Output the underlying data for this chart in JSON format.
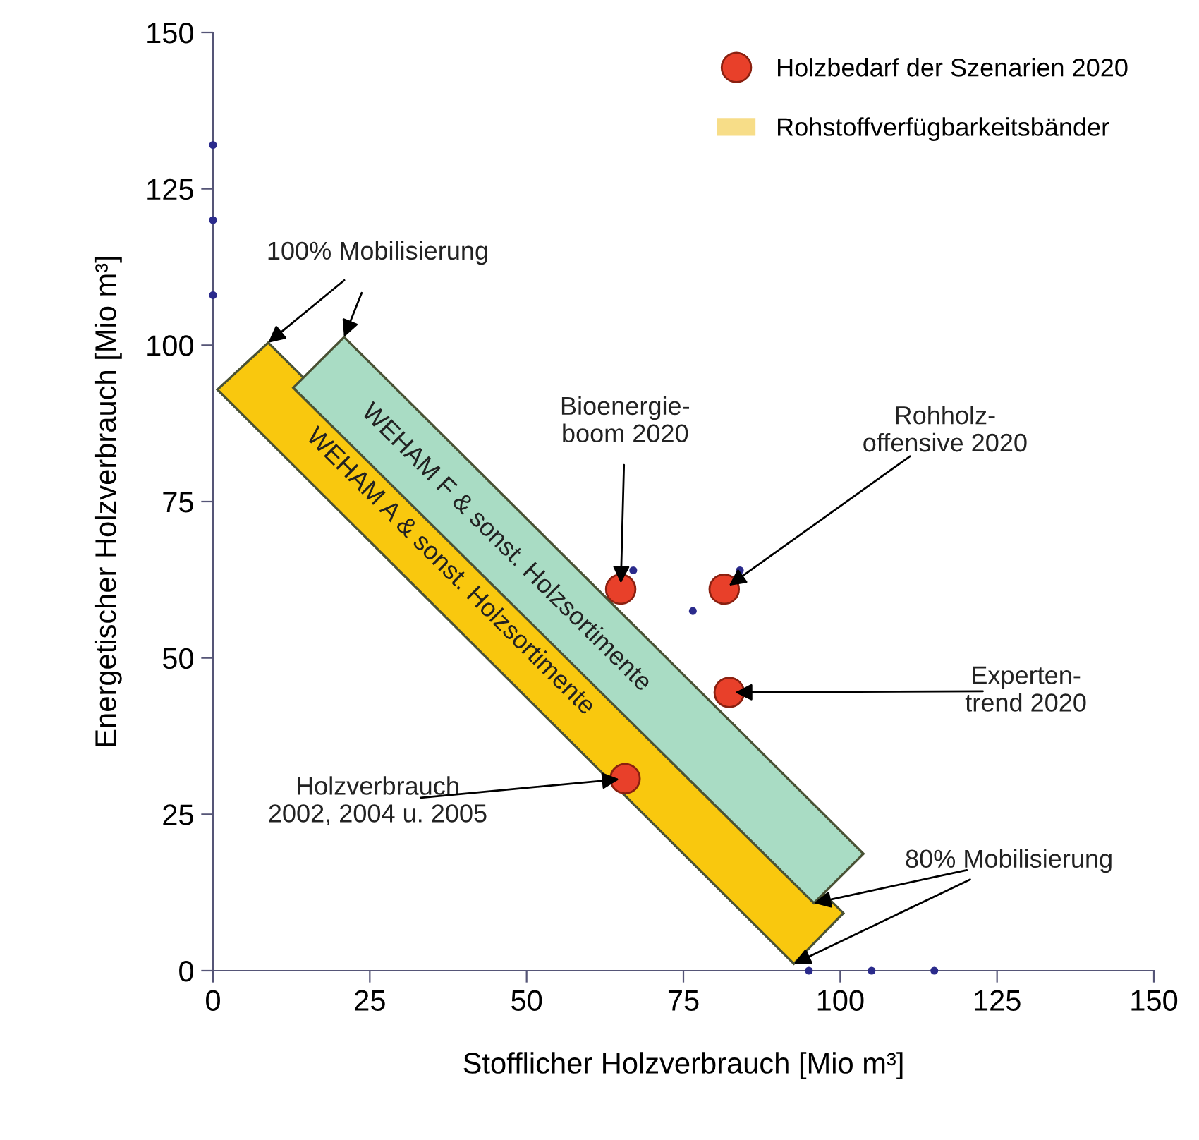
{
  "chart_data": {
    "type": "scatter",
    "xlabel": "Stofflicher Holzverbrauch [Mio m³]",
    "ylabel": "Energetischer Holzverbrauch [Mio m³]",
    "xlim": [
      0,
      150
    ],
    "ylim": [
      0,
      150
    ],
    "xticks": [
      0,
      25,
      50,
      75,
      100,
      125,
      150
    ],
    "yticks": [
      0,
      25,
      50,
      75,
      100,
      125,
      150
    ],
    "grid": false,
    "legend": "top right",
    "series": [
      {
        "type": "area",
        "name": "WEHAM A & sonst. Holzsortimente",
        "color": "#f9c80e",
        "x": [
          8.8,
          0.7,
          92.6,
          100.5
        ],
        "values": [
          100.4,
          92.9,
          1.1,
          9.2
        ]
      },
      {
        "type": "area",
        "name": "WEHAM F & sonst. Holzsortimente",
        "color": "#a9dcc4",
        "x": [
          20.9,
          12.8,
          95.8,
          103.7
        ],
        "values": [
          101.3,
          93.2,
          10.8,
          18.7
        ]
      },
      {
        "marker": "circle",
        "color": "#2b2b8c",
        "x": [
          0,
          0,
          0,
          95,
          105,
          115,
          67,
          76.5,
          84
        ],
        "values": [
          132,
          120,
          108,
          0,
          0,
          0,
          64,
          57.5,
          64
        ]
      },
      {
        "marker": "circle",
        "name": "Holzbedarf der Szenarien 2020",
        "color": "#e8402a",
        "x": [
          65,
          81.5,
          82.3,
          65.7
        ],
        "values": [
          61,
          61,
          44.5,
          30.7
        ]
      },
      {
        "type": "area",
        "name": "Rohstoffverfügbarkeitsbänder",
        "color": "#f7dd88"
      }
    ],
    "annotations": [
      {
        "text": "100% Mobilisierung",
        "x": 8.8,
        "y": 100.4
      },
      {
        "text": "Bioenergie-\nboom 2020",
        "x": 65,
        "y": 61
      },
      {
        "text": "Rohholz-\noffensive 2020",
        "x": 81.5,
        "y": 61
      },
      {
        "text": "Experten-\ntrend 2020",
        "x": 82.3,
        "y": 44.5
      },
      {
        "text": "Holzverbrauch\n2002, 2004 u. 2005",
        "x": 65.7,
        "y": 30.7
      },
      {
        "text": "80% Mobilisierung",
        "x": 92.6,
        "y": 1.1
      }
    ]
  }
}
